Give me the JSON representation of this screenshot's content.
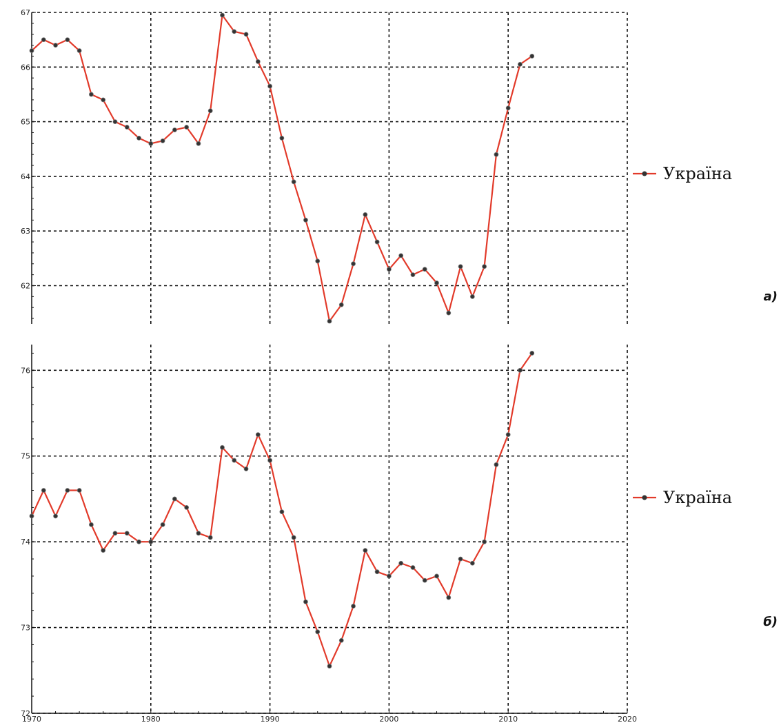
{
  "colors": {
    "series_line": "#e23a2a",
    "marker": "#333333",
    "grid": "#111111",
    "axis": "#111111",
    "background": "#ffffff"
  },
  "chart_data": [
    {
      "type": "line",
      "panel_label": "а)",
      "title": "",
      "xlabel": "",
      "ylabel": "",
      "xlim": [
        1970,
        2020
      ],
      "ylim": [
        61.3,
        67
      ],
      "x_ticks": [
        "1970",
        "1980",
        "1990",
        "2000",
        "2010",
        "2020"
      ],
      "x_tick_values": [
        1970,
        1980,
        1990,
        2000,
        2010,
        2020
      ],
      "y_ticks": [
        "62",
        "63",
        "64",
        "65",
        "66",
        "67"
      ],
      "y_tick_values": [
        62,
        63,
        64,
        65,
        66,
        67
      ],
      "grid": true,
      "legend_position": "right",
      "series": [
        {
          "name": "Україна",
          "x": [
            1970,
            1971,
            1972,
            1973,
            1974,
            1975,
            1976,
            1977,
            1978,
            1979,
            1980,
            1981,
            1982,
            1983,
            1984,
            1985,
            1986,
            1987,
            1988,
            1989,
            1990,
            1991,
            1992,
            1993,
            1994,
            1995,
            1996,
            1997,
            1998,
            1999,
            2000,
            2001,
            2002,
            2003,
            2004,
            2005,
            2006,
            2007,
            2008,
            2009,
            2010,
            2011,
            2012
          ],
          "values": [
            66.3,
            66.5,
            66.4,
            66.5,
            66.3,
            65.5,
            65.4,
            65.0,
            64.9,
            64.7,
            64.6,
            64.65,
            64.85,
            64.9,
            64.6,
            65.2,
            66.95,
            66.65,
            66.6,
            66.1,
            65.65,
            64.7,
            63.9,
            63.2,
            62.45,
            61.35,
            61.65,
            62.4,
            63.3,
            62.8,
            62.3,
            62.55,
            62.2,
            62.3,
            62.05,
            61.5,
            62.35,
            61.8,
            62.35,
            64.4,
            65.25,
            66.05,
            66.2
          ]
        }
      ]
    },
    {
      "type": "line",
      "panel_label": "б)",
      "title": "",
      "xlabel": "",
      "ylabel": "",
      "xlim": [
        1970,
        2020
      ],
      "ylim": [
        72,
        76.3
      ],
      "x_ticks": [
        "1970",
        "1980",
        "1990",
        "2000",
        "2010",
        "2020"
      ],
      "x_tick_values": [
        1970,
        1980,
        1990,
        2000,
        2010,
        2020
      ],
      "y_ticks": [
        "72",
        "73",
        "74",
        "75",
        "76"
      ],
      "y_tick_values": [
        72,
        73,
        74,
        75,
        76
      ],
      "grid": true,
      "legend_position": "right",
      "series": [
        {
          "name": "Україна",
          "x": [
            1970,
            1971,
            1972,
            1973,
            1974,
            1975,
            1976,
            1977,
            1978,
            1979,
            1980,
            1981,
            1982,
            1983,
            1984,
            1985,
            1986,
            1987,
            1988,
            1989,
            1990,
            1991,
            1992,
            1993,
            1994,
            1995,
            1996,
            1997,
            1998,
            1999,
            2000,
            2001,
            2002,
            2003,
            2004,
            2005,
            2006,
            2007,
            2008,
            2009,
            2010,
            2011,
            2012
          ],
          "values": [
            74.3,
            74.6,
            74.3,
            74.6,
            74.6,
            74.2,
            73.9,
            74.1,
            74.1,
            74.0,
            74.0,
            74.2,
            74.5,
            74.4,
            74.1,
            74.05,
            75.1,
            74.95,
            74.85,
            75.25,
            74.95,
            74.35,
            74.05,
            73.3,
            72.95,
            72.55,
            72.85,
            73.25,
            73.9,
            73.65,
            73.6,
            73.75,
            73.7,
            73.55,
            73.6,
            73.35,
            73.8,
            73.75,
            74.0,
            74.9,
            75.25,
            76.0,
            76.2
          ]
        }
      ]
    }
  ]
}
